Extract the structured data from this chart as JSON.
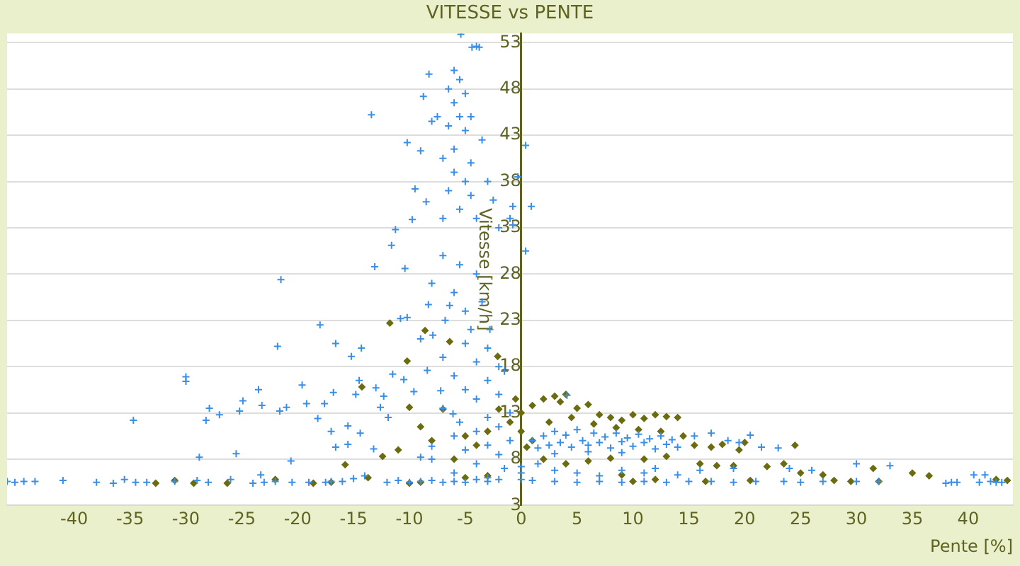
{
  "chart_data": {
    "type": "scatter",
    "title": "VITESSE vs PENTE",
    "xlabel": "Pente [%]",
    "ylabel": "Vitesse [km/h]",
    "xlim": [
      -46,
      44
    ],
    "xticks": [
      -40,
      -35,
      -30,
      -25,
      -20,
      -15,
      -10,
      -5,
      0,
      5,
      10,
      15,
      20,
      25,
      30,
      35,
      40
    ],
    "ylim": [
      3,
      54
    ],
    "yticks": [
      3,
      8,
      13,
      18,
      23,
      28,
      33,
      38,
      43,
      48,
      53
    ],
    "grid": "y",
    "legend": false,
    "series": [
      {
        "color": "#3a8ee6",
        "marker": "cross",
        "x": [
          -46,
          -45.3,
          -44.5,
          -43.5,
          -41,
          -38,
          -36.5,
          -35.5,
          -34.5,
          -33.5,
          -31,
          -29,
          -28,
          -26,
          -24,
          -23,
          -22,
          -20.5,
          -19,
          -17.5,
          -17,
          -16,
          -15,
          -14,
          -12,
          -11,
          -10,
          -9,
          -8,
          -7,
          -6,
          -5,
          -4,
          -3,
          -2,
          1,
          3,
          5,
          7,
          9,
          11,
          13,
          15,
          17,
          19,
          21,
          23.5,
          25,
          27,
          30,
          32,
          38,
          39,
          41,
          42,
          43,
          -34.7,
          -30,
          -30,
          -28.8,
          -28.2,
          -27.9,
          -27,
          -25.5,
          -24.9,
          -25.2,
          -23.5,
          -23.2,
          -23.3,
          -21.8,
          -21.6,
          -21,
          -20.6,
          -19.6,
          -19.2,
          -18,
          -18.2,
          -17.6,
          -17,
          -16.6,
          -16.8,
          -16.6,
          -15.2,
          -15.5,
          -15.5,
          -14.3,
          -14.5,
          -14.8,
          -14.4,
          -13.2,
          -13,
          -12.6,
          -12.3,
          -11.9,
          -11.5,
          -10.8,
          -10.2,
          -10.5,
          -9.6,
          -9,
          -8.3,
          -7.9,
          -8.4,
          -8,
          -7.2,
          -6.4,
          -6.1,
          -21.5,
          -13.4,
          -10.2,
          -9,
          -8.25,
          -8.75,
          -9.5,
          -9.75,
          -11.25,
          -11.6,
          -13.1,
          -10.4,
          -8.5,
          -5.4,
          -4.4,
          -4,
          -3.75,
          -6,
          -5.5,
          -6.5,
          -5,
          -6,
          -7.5,
          -5.5,
          -4.5,
          -6.5,
          -5,
          -8,
          -3.5,
          -6,
          -7,
          -4.5,
          -6,
          -5,
          -3,
          -6.5,
          -4.5,
          -2.5,
          -5.5,
          -7,
          -4,
          -2,
          -1,
          0.4,
          0.9,
          0.4,
          -0.3,
          -0.75,
          -0.75,
          -7,
          -5.5,
          -4,
          -8,
          -6,
          -3.5,
          -5,
          -6.8,
          -4.5,
          -2.8,
          -9,
          -5,
          -3,
          -7,
          -4,
          -2,
          -1.5,
          -6,
          -3,
          -5,
          -2,
          -4,
          -7,
          -1,
          -3,
          -5.5,
          -2,
          -4,
          -6,
          -1,
          -3,
          -5,
          -2,
          -8,
          -4,
          -1.5,
          -6,
          -3,
          1,
          1.5,
          2,
          2.5,
          3,
          3.5,
          4,
          4.5,
          5,
          5.5,
          6,
          6.5,
          7,
          7.5,
          8,
          8.5,
          9,
          9.5,
          10,
          10.5,
          11,
          11.5,
          12,
          12.5,
          13,
          13.5,
          14,
          4.1,
          3,
          6,
          9,
          15.5,
          17,
          18.5,
          19.5,
          20.5,
          21.5,
          23,
          1.5,
          3,
          5,
          7,
          9,
          11,
          12,
          14,
          16,
          19,
          24,
          26,
          30,
          33,
          38.5,
          40.5,
          41.5,
          42.5,
          0,
          0,
          0
        ],
        "values": [
          5.6,
          5.5,
          5.6,
          5.6,
          5.7,
          5.5,
          5.4,
          5.8,
          5.5,
          5.5,
          5.6,
          5.7,
          5.5,
          5.8,
          5.4,
          5.5,
          5.6,
          5.5,
          5.5,
          5.5,
          5.6,
          5.6,
          5.9,
          6.2,
          5.5,
          5.7,
          5.5,
          5.6,
          5.7,
          5.5,
          5.6,
          5.5,
          5.8,
          5.6,
          5.8,
          5.7,
          5.6,
          5.5,
          5.6,
          5.5,
          5.6,
          5.5,
          5.6,
          5.6,
          5.5,
          5.6,
          5.6,
          5.5,
          5.6,
          5.6,
          5.6,
          5.4,
          5.5,
          5.5,
          5.6,
          5.5,
          12.2,
          16.9,
          16.4,
          8.2,
          12.2,
          13.5,
          12.8,
          8.6,
          14.3,
          13.2,
          15.5,
          13.8,
          6.3,
          20.2,
          13.2,
          13.6,
          7.8,
          16,
          14,
          22.5,
          12.4,
          14,
          11,
          20.5,
          15.2,
          9.3,
          19.1,
          11.6,
          9.6,
          20,
          16.5,
          15,
          10.8,
          9.1,
          15.7,
          13.6,
          14.8,
          12.5,
          17.2,
          23.2,
          23.3,
          16.6,
          15.3,
          8.2,
          24.7,
          21.4,
          17.6,
          9.4,
          15.4,
          24.6,
          12.9,
          27.4,
          45.2,
          42.2,
          41.3,
          49.6,
          47.2,
          37.2,
          33.9,
          32.8,
          31.1,
          28.8,
          28.6,
          35.8,
          53.9,
          52.5,
          52.6,
          52.5,
          50,
          49,
          48,
          47.5,
          46.5,
          45,
          45,
          45,
          44,
          43.5,
          44.5,
          42.5,
          41.5,
          40.5,
          40,
          39,
          38,
          38,
          37,
          36.5,
          36,
          35,
          34,
          34,
          33,
          34,
          41.9,
          35.3,
          30.5,
          38.5,
          35.3,
          33.3,
          30,
          29,
          28,
          27,
          26,
          25,
          24,
          23,
          22,
          22,
          21,
          20.5,
          20,
          19,
          18.5,
          18,
          17.5,
          17,
          16.5,
          15.5,
          15,
          14.5,
          13.5,
          13,
          12.5,
          12,
          11.5,
          11,
          10.5,
          10,
          9.5,
          9,
          8.5,
          8,
          7.5,
          7,
          6.5,
          6,
          10,
          9.2,
          10.5,
          9.5,
          11,
          9.8,
          10.6,
          9.3,
          11.2,
          10,
          9.5,
          10.8,
          9.8,
          10.4,
          9.2,
          10.8,
          9.9,
          10.3,
          9.4,
          10.7,
          9.8,
          10.2,
          9.1,
          10.5,
          9.6,
          10.1,
          9.3,
          14.9,
          8.6,
          8.8,
          8.7,
          10.5,
          10.8,
          10,
          9.8,
          10.6,
          9.3,
          9.2,
          7.5,
          6.8,
          6.5,
          6.2,
          6.8,
          6.5,
          7,
          6.3,
          6.8,
          7,
          7,
          6.8,
          7.5,
          7.3,
          5.5,
          6.3,
          6.3,
          5.5,
          5.8,
          6.5,
          7.2
        ]
      },
      {
        "color": "#6b6b10",
        "marker": "diamond",
        "x": [
          1,
          2,
          3,
          3.5,
          4,
          5,
          6,
          7,
          8,
          9,
          10,
          11,
          12,
          13,
          14,
          2.5,
          4.5,
          6.5,
          8.5,
          10.5,
          12.5,
          14.5,
          15.5,
          17,
          18,
          19.5,
          20,
          24.5,
          13,
          11,
          8,
          6,
          4,
          2,
          9,
          16,
          17.5,
          19,
          22,
          23.5,
          25,
          27,
          28,
          29.5,
          31.5,
          32,
          35,
          36.5,
          42.5,
          43.5,
          20.5,
          16.5,
          12,
          10,
          1,
          0.5,
          0,
          0,
          -0.5,
          -1,
          -2,
          -3,
          -4,
          -5,
          -6,
          -7,
          -8,
          -9,
          -10,
          -11,
          -8.6,
          -11.75,
          -10.2,
          -6.4,
          -15.75,
          -13.7,
          -12.4,
          -14.25,
          -32.7,
          -31,
          -29.3,
          -26.3,
          -22,
          -18.6,
          -17,
          -10,
          -9,
          -5,
          -3,
          -2.1
        ],
        "values": [
          13.8,
          14.5,
          14.8,
          14.2,
          15,
          13.5,
          13.9,
          12.8,
          12.5,
          12.2,
          12.8,
          12.4,
          12.8,
          12.6,
          12.5,
          12,
          12.5,
          11.8,
          11.4,
          11.2,
          11,
          10.5,
          9.5,
          9.3,
          9.6,
          9,
          9.8,
          9.5,
          8.3,
          8,
          8.1,
          7.8,
          7.5,
          8,
          6.3,
          7.5,
          7.3,
          7.3,
          7.2,
          7.5,
          6.5,
          6.3,
          5.7,
          5.6,
          7,
          5.6,
          6.5,
          6.2,
          5.8,
          5.7,
          5.7,
          5.6,
          5.8,
          5.6,
          10,
          9.3,
          13,
          11,
          14.5,
          12,
          13.4,
          11,
          9.5,
          10.5,
          8,
          13.4,
          10,
          11.5,
          13.6,
          9,
          21.9,
          22.7,
          18.6,
          20.7,
          7.4,
          6,
          8.3,
          15.8,
          5.4,
          5.7,
          5.4,
          5.4,
          5.8,
          5.4,
          5.5,
          5.4,
          5.5,
          6,
          6.2,
          19.1
        ]
      }
    ]
  }
}
